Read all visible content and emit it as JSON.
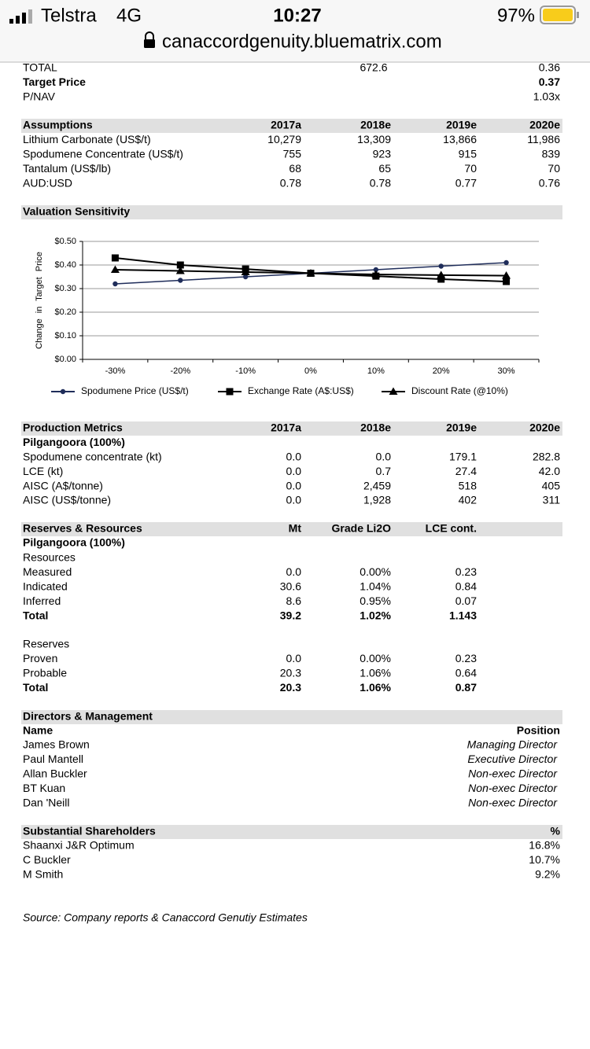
{
  "status_bar": {
    "carrier": "Telstra",
    "network": "4G",
    "time": "10:27",
    "battery": "97%"
  },
  "url_bar": {
    "url": "canaccordgenuity.bluematrix.com"
  },
  "summary": {
    "rows": [
      {
        "label": "TOTAL",
        "mid": "672.6",
        "value": "0.36"
      },
      {
        "label": "Target Price",
        "value": "0.37"
      },
      {
        "label": "P/NAV",
        "value": "1.03x"
      }
    ]
  },
  "assumptions": {
    "title": "Assumptions",
    "columns": [
      "2017a",
      "2018e",
      "2019e",
      "2020e"
    ],
    "rows": [
      {
        "label": "Lithium Carbonate (US$/t)",
        "values": [
          "10,279",
          "13,309",
          "13,866",
          "11,986"
        ]
      },
      {
        "label": "Spodumene Concentrate (US$/t)",
        "values": [
          "755",
          "923",
          "915",
          "839"
        ]
      },
      {
        "label": "Tantalum (US$/lb)",
        "values": [
          "68",
          "65",
          "70",
          "70"
        ]
      },
      {
        "label": "AUD:USD",
        "values": [
          "0.78",
          "0.78",
          "0.77",
          "0.76"
        ]
      }
    ]
  },
  "chart_data": {
    "type": "line",
    "title": "Valuation Sensitivity",
    "y_label": "Change in Target Price",
    "categories": [
      "-30%",
      "-20%",
      "-10%",
      "0%",
      "10%",
      "20%",
      "30%"
    ],
    "ylim": [
      0,
      0.5
    ],
    "yticks": [
      {
        "value": 0,
        "label": "$0.00"
      },
      {
        "value": 0.1,
        "label": "$0.10"
      },
      {
        "value": 0.2,
        "label": "$0.20"
      },
      {
        "value": 0.3,
        "label": "$0.30"
      },
      {
        "value": 0.4,
        "label": "$0.40"
      },
      {
        "value": 0.5,
        "label": "$0.50"
      }
    ],
    "grid": true,
    "series": [
      {
        "name": "Spodumene Price (US$/t)",
        "color": "#1f2d5a",
        "marker": "circle",
        "values": [
          0.32,
          0.335,
          0.35,
          0.365,
          0.38,
          0.395,
          0.41
        ]
      },
      {
        "name": "Exchange Rate (A$:US$)",
        "color": "#000000",
        "marker": "square",
        "values": [
          0.43,
          0.4,
          0.383,
          0.365,
          0.353,
          0.34,
          0.33
        ]
      },
      {
        "name": "Discount Rate (@10%)",
        "color": "#000000",
        "marker": "triangle",
        "values": [
          0.38,
          0.375,
          0.37,
          0.365,
          0.36,
          0.357,
          0.355
        ]
      }
    ]
  },
  "production": {
    "title": "Production Metrics",
    "columns": [
      "2017a",
      "2018e",
      "2019e",
      "2020e"
    ],
    "subheading": "Pilgangoora (100%)",
    "rows": [
      {
        "label": "Spodumene concentrate (kt)",
        "values": [
          "0.0",
          "0.0",
          "179.1",
          "282.8"
        ]
      },
      {
        "label": "LCE (kt)",
        "values": [
          "0.0",
          "0.7",
          "27.4",
          "42.0"
        ]
      },
      {
        "label": "AISC (A$/tonne)",
        "values": [
          "0.0",
          "2,459",
          "518",
          "405"
        ]
      },
      {
        "label": "AISC (US$/tonne)",
        "values": [
          "0.0",
          "1,928",
          "402",
          "311"
        ]
      }
    ]
  },
  "reserves": {
    "title": "Reserves & Resources",
    "columns": [
      "Mt",
      "Grade Li2O",
      "LCE cont."
    ],
    "subheading": "Pilgangoora (100%)",
    "resources": {
      "label": "Resources",
      "rows": [
        {
          "label": "Measured",
          "values": [
            "0.0",
            "0.00%",
            "0.23"
          ]
        },
        {
          "label": "Indicated",
          "values": [
            "30.6",
            "1.04%",
            "0.84"
          ]
        },
        {
          "label": "Inferred",
          "values": [
            "8.6",
            "0.95%",
            "0.07"
          ]
        }
      ],
      "total": {
        "label": "Total",
        "values": [
          "39.2",
          "1.02%",
          "1.143"
        ]
      }
    },
    "reserves": {
      "label": "Reserves",
      "rows": [
        {
          "label": "Proven",
          "values": [
            "0.0",
            "0.00%",
            "0.23"
          ]
        },
        {
          "label": "Probable",
          "values": [
            "20.3",
            "1.06%",
            "0.64"
          ]
        }
      ],
      "total": {
        "label": "Total",
        "values": [
          "20.3",
          "1.06%",
          "0.87"
        ]
      }
    }
  },
  "directors": {
    "title": "Directors & Management",
    "name_header": "Name",
    "position_header": "Position",
    "rows": [
      {
        "name": "James Brown",
        "position": "Managing Director"
      },
      {
        "name": "Paul Mantell",
        "position": "Executive Director"
      },
      {
        "name": "Allan Buckler",
        "position": "Non-exec Director"
      },
      {
        "name": "BT Kuan",
        "position": "Non-exec Director"
      },
      {
        "name": "Dan 'Neill",
        "position": "Non-exec Director"
      }
    ]
  },
  "shareholders": {
    "title": "Substantial Shareholders",
    "pct_header": "%",
    "rows": [
      {
        "name": "Shaanxi J&R Optimum",
        "pct": "16.8%"
      },
      {
        "name": "C Buckler",
        "pct": "10.7%"
      },
      {
        "name": "M Smith",
        "pct": "9.2%"
      }
    ]
  },
  "source": "Source: Company reports & Canaccord Genutiy Estimates"
}
